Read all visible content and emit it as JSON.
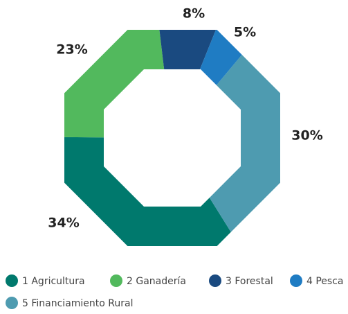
{
  "chart_data": {
    "type": "donut",
    "categories": [
      "1 Agricultura",
      "2 Ganadería",
      "3 Forestal",
      "4 Pesca",
      "5 Financiamiento Rural"
    ],
    "values": [
      34,
      23,
      8,
      5,
      30
    ],
    "value_labels": [
      "34%",
      "23%",
      "8%",
      "5%",
      "30%"
    ],
    "colors": [
      "#00796d",
      "#52b95d",
      "#1a4a80",
      "#1f7cc3",
      "#4e9bb0"
    ],
    "legend": "bottom"
  }
}
